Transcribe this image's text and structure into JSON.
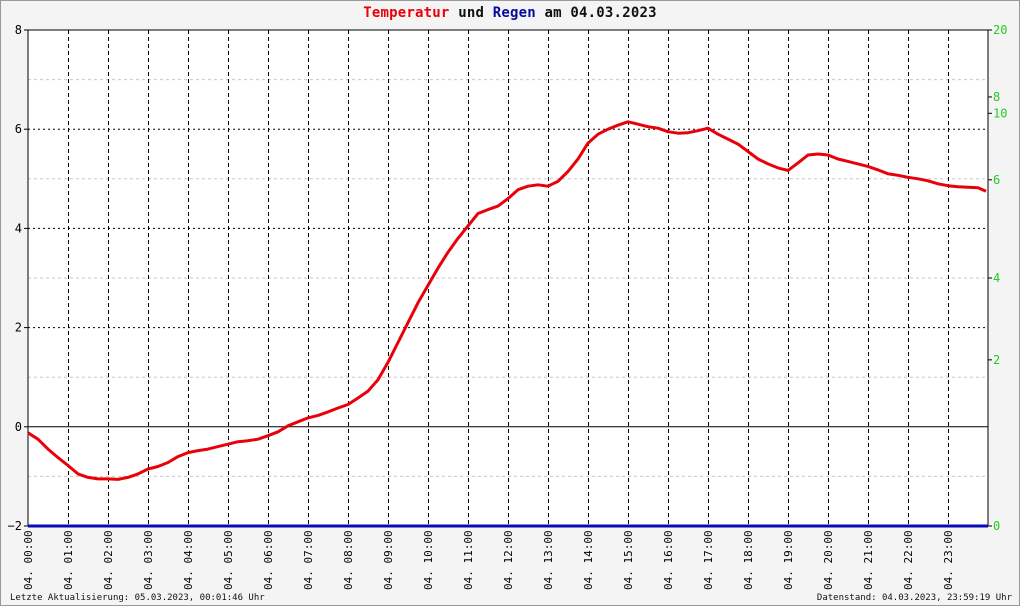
{
  "title": {
    "part1": "Temperatur",
    "part2": "und",
    "part3": "Regen",
    "part4": "am 04.03.2023",
    "color_temperature": "#e8000b",
    "color_rain": "#0a0a9a",
    "color_text": "#111111"
  },
  "footer": {
    "left": "Letzte Aktualisierung: 05.03.2023, 00:01:46 Uhr",
    "right": "Datenstand: 04.03.2023, 23:59:19 Uhr"
  },
  "chart_data": {
    "type": "line",
    "title": "Temperatur und Regen am 04.03.2023",
    "x_unit": "hour",
    "xlim": [
      0,
      24
    ],
    "x_ticks": [
      "04. 00:00",
      "04. 01:00",
      "04. 02:00",
      "04. 03:00",
      "04. 04:00",
      "04. 05:00",
      "04. 06:00",
      "04. 07:00",
      "04. 08:00",
      "04. 09:00",
      "04. 10:00",
      "04. 11:00",
      "04. 12:00",
      "04. 13:00",
      "04. 14:00",
      "04. 15:00",
      "04. 16:00",
      "04. 17:00",
      "04. 18:00",
      "04. 19:00",
      "04. 20:00",
      "04. 21:00",
      "04. 22:00",
      "04. 23:00"
    ],
    "y_left": {
      "ylim": [
        -2,
        8
      ],
      "ticks": [
        "−2",
        "0",
        "2",
        "4",
        "6",
        "8"
      ],
      "color": "#000000"
    },
    "y_right": {
      "ylim": [
        0,
        20
      ],
      "ticks": [
        "0",
        "2",
        "4",
        "6",
        "8",
        "10",
        "20"
      ],
      "color": "#22cc22"
    },
    "grid": true,
    "zero_line": 0,
    "series": [
      {
        "name": "Temperatur",
        "axis": "left",
        "color": "#e8000b",
        "x": [
          0,
          0.25,
          0.5,
          0.75,
          1,
          1.25,
          1.5,
          1.75,
          2,
          2.25,
          2.5,
          2.75,
          3,
          3.25,
          3.5,
          3.75,
          4,
          4.25,
          4.5,
          4.75,
          5,
          5.25,
          5.5,
          5.75,
          6,
          6.25,
          6.5,
          6.75,
          7,
          7.25,
          7.5,
          7.75,
          8,
          8.25,
          8.5,
          8.75,
          9,
          9.25,
          9.5,
          9.75,
          10,
          10.25,
          10.5,
          10.75,
          11,
          11.25,
          11.5,
          11.75,
          12,
          12.25,
          12.5,
          12.75,
          13,
          13.25,
          13.5,
          13.75,
          14,
          14.25,
          14.5,
          14.75,
          15,
          15.25,
          15.5,
          15.75,
          16,
          16.25,
          16.5,
          16.75,
          17,
          17.25,
          17.5,
          17.75,
          18,
          18.25,
          18.5,
          18.75,
          19,
          19.25,
          19.5,
          19.75,
          20,
          20.25,
          20.5,
          20.75,
          21,
          21.25,
          21.5,
          21.75,
          22,
          22.25,
          22.5,
          22.75,
          23,
          23.25,
          23.5,
          23.75,
          23.95
        ],
        "values": [
          -0.12,
          -0.25,
          -0.45,
          -0.62,
          -0.78,
          -0.95,
          -1.02,
          -1.05,
          -1.05,
          -1.06,
          -1.02,
          -0.95,
          -0.85,
          -0.8,
          -0.72,
          -0.6,
          -0.52,
          -0.48,
          -0.45,
          -0.4,
          -0.35,
          -0.3,
          -0.28,
          -0.25,
          -0.18,
          -0.1,
          0.02,
          0.1,
          0.18,
          0.23,
          0.3,
          0.38,
          0.45,
          0.58,
          0.72,
          0.95,
          1.3,
          1.7,
          2.1,
          2.5,
          2.85,
          3.2,
          3.52,
          3.8,
          4.05,
          4.3,
          4.38,
          4.45,
          4.6,
          4.78,
          4.85,
          4.88,
          4.85,
          4.95,
          5.15,
          5.4,
          5.72,
          5.9,
          6.0,
          6.08,
          6.15,
          6.1,
          6.05,
          6.02,
          5.95,
          5.92,
          5.93,
          5.97,
          6.02,
          5.9,
          5.8,
          5.7,
          5.55,
          5.4,
          5.3,
          5.22,
          5.17,
          5.32,
          5.48,
          5.5,
          5.48,
          5.4,
          5.35,
          5.3,
          5.25,
          5.18,
          5.1,
          5.07,
          5.03,
          5.0,
          4.96,
          4.9,
          4.86,
          4.84,
          4.83,
          4.82,
          4.75
        ]
      },
      {
        "name": "Regen",
        "axis": "right",
        "color": "#0a0ab8",
        "x": [
          0,
          24
        ],
        "values": [
          0,
          0
        ]
      }
    ]
  }
}
